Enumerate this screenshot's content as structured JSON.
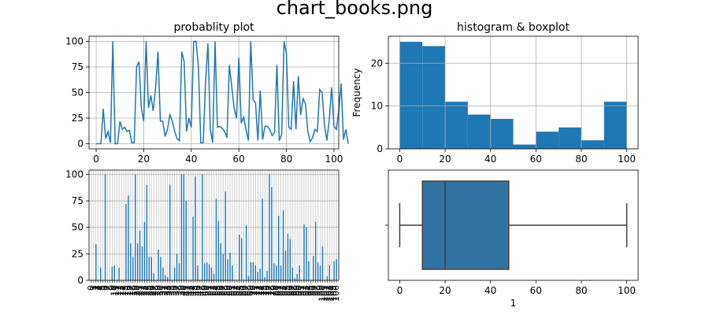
{
  "figure": {
    "title": "chart_books.png"
  },
  "chart_data": [
    {
      "id": "line",
      "type": "line",
      "title": "probablity plot",
      "xlim": [
        -3,
        102
      ],
      "ylim": [
        -5,
        105
      ],
      "xticks": [
        0,
        20,
        40,
        60,
        80,
        100
      ],
      "yticks": [
        0,
        25,
        50,
        75,
        100
      ],
      "grid": true,
      "color": "#1f77b4",
      "y": [
        0,
        0,
        0,
        34,
        5,
        12,
        1,
        100,
        0,
        0,
        22,
        14,
        16,
        12,
        13,
        1,
        1,
        75,
        80,
        35,
        22,
        100,
        35,
        47,
        32,
        55,
        90,
        22,
        22,
        7,
        14,
        29,
        22,
        12,
        5,
        3,
        90,
        80,
        12,
        25,
        16,
        100,
        100,
        75,
        1,
        1,
        60,
        98,
        14,
        1,
        100,
        16,
        17,
        15,
        12,
        6,
        77,
        56,
        35,
        25,
        84,
        20,
        26,
        14,
        3,
        100,
        43,
        40,
        3,
        52,
        4,
        17,
        17,
        14,
        8,
        11,
        77,
        3,
        9,
        100,
        88,
        16,
        14,
        61,
        14,
        66,
        28,
        44,
        39,
        12,
        2,
        6,
        14,
        12,
        53,
        50,
        18,
        3,
        23,
        55,
        17,
        14,
        32,
        59,
        4,
        14,
        0
      ]
    },
    {
      "id": "hist",
      "type": "bar",
      "title": "histogram & boxplot",
      "xlabel": "",
      "ylabel": "Frequency",
      "xlim": [
        -5,
        105
      ],
      "ylim": [
        0,
        26.3
      ],
      "xticks": [
        0,
        20,
        40,
        60,
        80,
        100
      ],
      "yticks": [
        0,
        10,
        20
      ],
      "grid": true,
      "color": "#1f77b4",
      "bin_edges": [
        0,
        10,
        20,
        30,
        40,
        50,
        60,
        70,
        80,
        90,
        100
      ],
      "counts": [
        25,
        24,
        11,
        8,
        7,
        1,
        4,
        5,
        2,
        11
      ]
    },
    {
      "id": "bars",
      "type": "bar",
      "title": "",
      "ylim": [
        0,
        104
      ],
      "yticks": [
        0,
        25,
        50,
        75,
        100
      ],
      "grid": true,
      "color": "#1f77b4",
      "values": [
        0,
        0,
        34,
        0,
        12,
        0,
        100,
        0,
        0,
        13,
        14,
        0,
        12,
        0,
        0,
        72,
        80,
        35,
        22,
        100,
        35,
        47,
        32,
        55,
        90,
        22,
        22,
        7,
        0,
        29,
        22,
        12,
        5,
        3,
        90,
        0,
        12,
        25,
        16,
        100,
        100,
        75,
        0,
        0,
        60,
        98,
        14,
        0,
        100,
        16,
        17,
        15,
        12,
        6,
        77,
        56,
        35,
        25,
        84,
        20,
        26,
        14,
        0,
        0,
        43,
        40,
        0,
        52,
        4,
        17,
        17,
        14,
        8,
        11,
        77,
        3,
        9,
        100,
        88,
        16,
        14,
        61,
        14,
        66,
        28,
        44,
        39,
        12,
        2,
        6,
        14,
        0,
        53,
        50,
        18,
        0,
        23,
        55,
        17,
        14,
        32,
        0,
        4,
        14,
        0,
        18,
        20
      ]
    },
    {
      "id": "box",
      "type": "boxplot",
      "xlabel": "1",
      "xlim": [
        -5,
        105
      ],
      "xticks": [
        0,
        20,
        40,
        60,
        80,
        100
      ],
      "grid": false,
      "color": "#3274a1",
      "edge_color": "#3f3f3f",
      "whisker_low": 0,
      "q1": 10,
      "median": 20,
      "q3": 48,
      "whisker_high": 100
    }
  ]
}
